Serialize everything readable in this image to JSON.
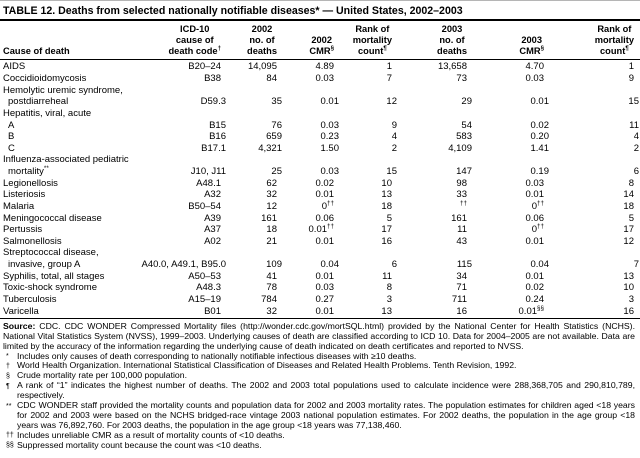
{
  "title": "TABLE 12. Deaths from selected nationally notifiable diseases* — United States, 2002–2003",
  "table": {
    "headers": [
      {
        "lines": [
          "Cause of death"
        ]
      },
      {
        "lines": [
          "ICD-10",
          "cause of",
          "death code†"
        ]
      },
      {
        "lines": [
          "2002",
          "no. of",
          "deaths"
        ]
      },
      {
        "lines": [
          "2002",
          "CMR§"
        ]
      },
      {
        "lines": [
          "Rank of",
          "mortality",
          "count¶"
        ]
      },
      {
        "lines": [
          "2003",
          "no. of",
          "deaths"
        ]
      },
      {
        "lines": [
          "2003",
          "CMR§"
        ]
      },
      {
        "lines": [
          "Rank of",
          "mortality",
          "count¶"
        ]
      }
    ],
    "rows": [
      {
        "cause": "AIDS",
        "indent": false,
        "cells": [
          "B20–24",
          "14,095",
          "4.89",
          "1",
          "13,658",
          "4.70",
          "1"
        ]
      },
      {
        "cause": "Coccidioidomycosis",
        "indent": false,
        "cells": [
          "B38",
          "84",
          "0.03",
          "7",
          "73",
          "0.03",
          "9"
        ]
      },
      {
        "cause": "Hemolytic uremic syndrome,",
        "indent": false,
        "cells": []
      },
      {
        "cause": "postdiarreheal",
        "indent": true,
        "cells": [
          "D59.3",
          "35",
          "0.01",
          "12",
          "29",
          "0.01",
          "15"
        ]
      },
      {
        "cause": "Hepatitis, viral, acute",
        "indent": false,
        "cells": []
      },
      {
        "cause": "A",
        "indent": true,
        "cells": [
          "B15",
          "76",
          "0.03",
          "9",
          "54",
          "0.02",
          "11"
        ]
      },
      {
        "cause": "B",
        "indent": true,
        "cells": [
          "B16",
          "659",
          "0.23",
          "4",
          "583",
          "0.20",
          "4"
        ]
      },
      {
        "cause": "C",
        "indent": true,
        "cells": [
          "B17.1",
          "4,321",
          "1.50",
          "2",
          "4,109",
          "1.41",
          "2"
        ]
      },
      {
        "cause": "Influenza-associated pediatric",
        "indent": false,
        "cells": []
      },
      {
        "cause": "mortality**",
        "indent": true,
        "cells": [
          "J10, J11",
          "25",
          "0.03",
          "15",
          "147",
          "0.19",
          "6"
        ]
      },
      {
        "cause": "Legionellosis",
        "indent": false,
        "cells": [
          "A48.1",
          "62",
          "0.02",
          "10",
          "98",
          "0.03",
          "8"
        ]
      },
      {
        "cause": "Listeriosis",
        "indent": false,
        "cells": [
          "A32",
          "32",
          "0.01",
          "13",
          "33",
          "0.01",
          "14"
        ]
      },
      {
        "cause": "Malaria",
        "indent": false,
        "cells": [
          "B50–54",
          "12",
          "0††",
          "18",
          "††",
          "0††",
          "18"
        ]
      },
      {
        "cause": "Meningococcal disease",
        "indent": false,
        "cells": [
          "A39",
          "161",
          "0.06",
          "5",
          "161",
          "0.06",
          "5"
        ]
      },
      {
        "cause": "Pertussis",
        "indent": false,
        "cells": [
          "A37",
          "18",
          "0.01††",
          "17",
          "11",
          "0††",
          "17"
        ]
      },
      {
        "cause": "Salmonellosis",
        "indent": false,
        "cells": [
          "A02",
          "21",
          "0.01",
          "16",
          "43",
          "0.01",
          "12"
        ]
      },
      {
        "cause": "Streptococcal disease,",
        "indent": false,
        "cells": []
      },
      {
        "cause": "invasive, group A",
        "indent": true,
        "cells": [
          "A40.0, A49.1, B95.0",
          "109",
          "0.04",
          "6",
          "115",
          "0.04",
          "7"
        ]
      },
      {
        "cause": "Syphilis, total, all stages",
        "indent": false,
        "cells": [
          "A50–53",
          "41",
          "0.01",
          "11",
          "34",
          "0.01",
          "13"
        ]
      },
      {
        "cause": "Toxic-shock syndrome",
        "indent": false,
        "cells": [
          "A48.3",
          "78",
          "0.03",
          "8",
          "71",
          "0.02",
          "10"
        ]
      },
      {
        "cause": "Tuberculosis",
        "indent": false,
        "cells": [
          "A15–19",
          "784",
          "0.27",
          "3",
          "711",
          "0.24",
          "3"
        ]
      },
      {
        "cause": "Varicella",
        "indent": false,
        "cells": [
          "B01",
          "32",
          "0.01",
          "13",
          "16",
          "0.01§§",
          "16"
        ]
      }
    ]
  },
  "source_label": "Source:",
  "source_text": " CDC. CDC WONDER Compressed Mortality files (http://wonder.cdc.gov/mortSQL.html) provided by the National Center for Health Statistics (NCHS).  National Vital Statistics System (NVSS), 1999–2003.  Underlying causes of death are classified according to ICD 10.  Data for 2004–2005 are not available.  Data are limited by the accuracy of the information regarding the underlying cause of death indicated on death certificates and reported to NVSS.",
  "footnotes": [
    {
      "marker": "*",
      "text": "Includes only causes of death corresponding to nationally notifiable infectious diseases with ≥10 deaths."
    },
    {
      "marker": "†",
      "text": "World Health Organization.  International Statistical Classification of Diseases and Related Health Problems.  Tenth Revision, 1992."
    },
    {
      "marker": "§",
      "text": "Crude mortality rate per 100,000 population."
    },
    {
      "marker": "¶",
      "text": "A rank of “1” indicates the highest number of deaths.  The 2002 and 2003 total populations used to calculate incidence were 288,368,705 and 290,810,789, respectively."
    },
    {
      "marker": "**",
      "text": "CDC WONDER staff provided the mortality counts and population data for 2002 and 2003 mortality rates.  The population estimates for children aged <18 years for 2002 and 2003 were based on the NCHS bridged-race vintage 2003 national population estimates.  For 2002 deaths, the population in the age group <18 years was 76,892,760.  For 2003 deaths, the population in the age group <18 years was 77,138,460."
    },
    {
      "marker": "††",
      "text": "Includes unreliable CMR as a result of mortality counts of <10 deaths."
    },
    {
      "marker": "§§",
      "text": "Suppressed mortality count because the count was <10 deaths."
    }
  ]
}
